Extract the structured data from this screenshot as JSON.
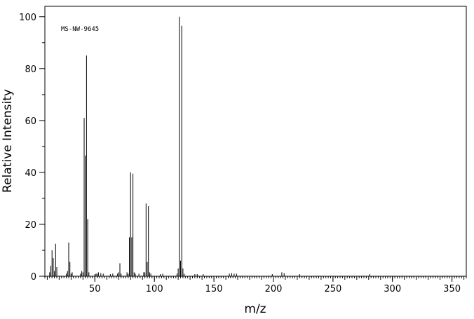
{
  "chart_data": {
    "type": "bar",
    "annotation": "MS-NW-9645",
    "xlabel": "m/z",
    "ylabel": "Relative Intensity",
    "xlim": [
      8,
      362
    ],
    "ylim": [
      0,
      104
    ],
    "xticks": [
      50,
      100,
      150,
      200,
      250,
      300,
      350
    ],
    "yticks": [
      0,
      20,
      40,
      60,
      80,
      100
    ],
    "grid": false,
    "peaks": [
      {
        "x": 12,
        "y": 1.5
      },
      {
        "x": 13,
        "y": 4.0
      },
      {
        "x": 14,
        "y": 10.0
      },
      {
        "x": 15,
        "y": 7.0
      },
      {
        "x": 16,
        "y": 2.0
      },
      {
        "x": 17,
        "y": 12.5
      },
      {
        "x": 18,
        "y": 3.5
      },
      {
        "x": 26,
        "y": 1.0
      },
      {
        "x": 27,
        "y": 2.0
      },
      {
        "x": 28,
        "y": 13.0
      },
      {
        "x": 29,
        "y": 5.5
      },
      {
        "x": 30,
        "y": 1.0
      },
      {
        "x": 31,
        "y": 1.5
      },
      {
        "x": 38,
        "y": 1.0
      },
      {
        "x": 39,
        "y": 2.0
      },
      {
        "x": 40,
        "y": 1.5
      },
      {
        "x": 41,
        "y": 61.0
      },
      {
        "x": 42,
        "y": 46.5
      },
      {
        "x": 43,
        "y": 85.0
      },
      {
        "x": 44,
        "y": 22.0
      },
      {
        "x": 45,
        "y": 1.5
      },
      {
        "x": 50,
        "y": 0.8
      },
      {
        "x": 51,
        "y": 1.0
      },
      {
        "x": 52,
        "y": 1.0
      },
      {
        "x": 53,
        "y": 1.5
      },
      {
        "x": 55,
        "y": 1.2
      },
      {
        "x": 57,
        "y": 1.0
      },
      {
        "x": 63,
        "y": 0.8
      },
      {
        "x": 65,
        "y": 1.0
      },
      {
        "x": 69,
        "y": 1.0
      },
      {
        "x": 70,
        "y": 1.5
      },
      {
        "x": 71,
        "y": 5.0
      },
      {
        "x": 72,
        "y": 1.0
      },
      {
        "x": 77,
        "y": 1.5
      },
      {
        "x": 78,
        "y": 1.0
      },
      {
        "x": 79,
        "y": 15.0
      },
      {
        "x": 80,
        "y": 40.0
      },
      {
        "x": 81,
        "y": 15.0
      },
      {
        "x": 82,
        "y": 39.5
      },
      {
        "x": 83,
        "y": 1.5
      },
      {
        "x": 84,
        "y": 1.0
      },
      {
        "x": 87,
        "y": 1.0
      },
      {
        "x": 91,
        "y": 1.5
      },
      {
        "x": 92,
        "y": 1.5
      },
      {
        "x": 93,
        "y": 28.0
      },
      {
        "x": 94,
        "y": 5.5
      },
      {
        "x": 95,
        "y": 27.0
      },
      {
        "x": 96,
        "y": 1.5
      },
      {
        "x": 97,
        "y": 1.0
      },
      {
        "x": 105,
        "y": 0.8
      },
      {
        "x": 107,
        "y": 1.0
      },
      {
        "x": 119,
        "y": 1.0
      },
      {
        "x": 120,
        "y": 3.0
      },
      {
        "x": 121,
        "y": 100.0
      },
      {
        "x": 122,
        "y": 6.0
      },
      {
        "x": 123,
        "y": 96.5
      },
      {
        "x": 124,
        "y": 3.0
      },
      {
        "x": 125,
        "y": 1.0
      },
      {
        "x": 134,
        "y": 0.8
      },
      {
        "x": 136,
        "y": 0.8
      },
      {
        "x": 141,
        "y": 0.8
      },
      {
        "x": 163,
        "y": 1.0
      },
      {
        "x": 165,
        "y": 1.2
      },
      {
        "x": 167,
        "y": 1.0
      },
      {
        "x": 169,
        "y": 1.0
      },
      {
        "x": 199,
        "y": 0.8
      },
      {
        "x": 207,
        "y": 1.5
      },
      {
        "x": 209,
        "y": 1.2
      },
      {
        "x": 222,
        "y": 0.8
      },
      {
        "x": 281,
        "y": 0.8
      }
    ]
  }
}
